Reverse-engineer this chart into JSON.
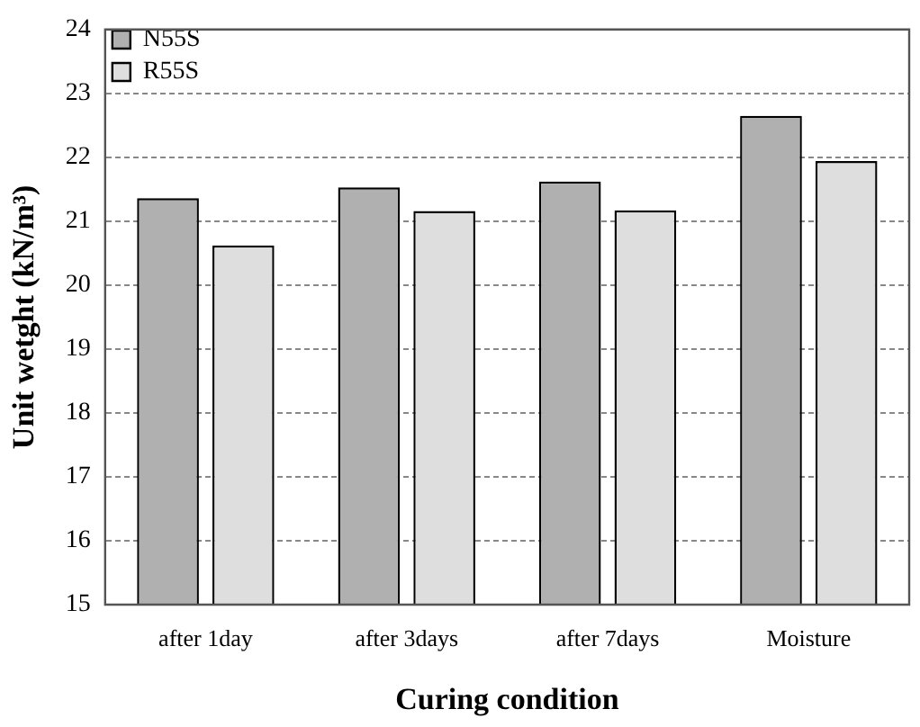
{
  "chart_data": {
    "type": "bar",
    "xlabel": "Curing condition",
    "ylabel": "Unit wetght (kN/m³)",
    "categories": [
      "after 1day",
      "after 3days",
      "after 7days",
      "Moisture"
    ],
    "series": [
      {
        "name": "N55S",
        "color": "#b0b0b0",
        "values": [
          21.36,
          21.53,
          21.62,
          22.65
        ]
      },
      {
        "name": "R55S",
        "color": "#dedede",
        "values": [
          20.62,
          21.16,
          21.17,
          21.94
        ]
      }
    ],
    "ylim": [
      15,
      24
    ],
    "yticks": [
      15,
      16,
      17,
      18,
      19,
      20,
      21,
      22,
      23,
      24
    ],
    "grid": "y",
    "legend": "top left"
  }
}
